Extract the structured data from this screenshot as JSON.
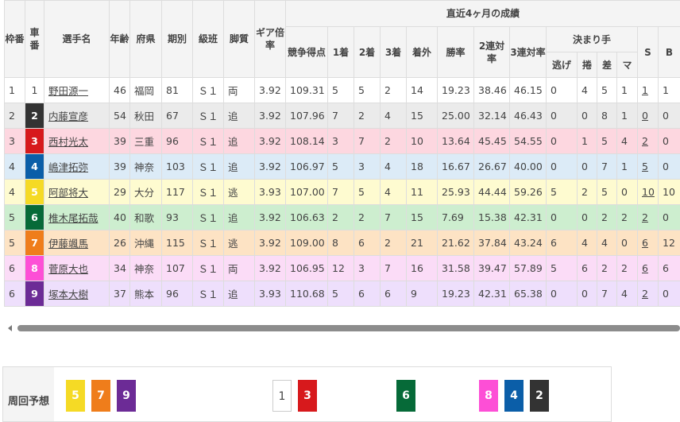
{
  "header": {
    "waku": "枠番",
    "sha": "車番",
    "name": "選手名",
    "age": "年齢",
    "pref": "府県",
    "term": "期別",
    "class": "級班",
    "style": "脚質",
    "gear": "ギア倍率",
    "recent": "直近4ヶ月の成績",
    "score": "競争得点",
    "first": "1着",
    "second": "2着",
    "third": "3着",
    "out": "着外",
    "win": "勝率",
    "ren2": "2連対率",
    "ren3": "3連対率",
    "kimarite": "決まり手",
    "nige": "逃げ",
    "makuri": "捲",
    "sashi": "差",
    "mark": "マ",
    "s": "S",
    "b": "B"
  },
  "car_colors": {
    "1": "#ffffff",
    "2": "#333333",
    "3": "#d7191c",
    "4": "#0b5ea8",
    "5": "#f5da25",
    "6": "#066a38",
    "7": "#ef7d1b",
    "8": "#fd4fd6",
    "9": "#6c2b96"
  },
  "row_colors": {
    "1": "#ffffff",
    "2": "#ebebeb",
    "3": "#fdd7e0",
    "4": "#dcebf7",
    "5": "#fefbd0",
    "6": "#cdeecf",
    "7": "#fde3c4",
    "8": "#fbdcf7",
    "9": "#eedffc"
  },
  "rows": [
    [
      "1",
      "1",
      "野田源一",
      "46",
      "福岡",
      "81",
      "Ｓ１",
      "両",
      "3.92",
      "109.31",
      "5",
      "5",
      "2",
      "14",
      "19.23",
      "38.46",
      "46.15",
      "0",
      "4",
      "5",
      "1",
      "1",
      "1"
    ],
    [
      "2",
      "2",
      "内藤宣彦",
      "54",
      "秋田",
      "67",
      "Ｓ１",
      "追",
      "3.92",
      "107.96",
      "7",
      "2",
      "4",
      "15",
      "25.00",
      "32.14",
      "46.43",
      "0",
      "0",
      "8",
      "1",
      "0",
      "0"
    ],
    [
      "3",
      "3",
      "西村光太",
      "39",
      "三重",
      "96",
      "Ｓ１",
      "追",
      "3.92",
      "108.14",
      "3",
      "7",
      "2",
      "10",
      "13.64",
      "45.45",
      "54.55",
      "0",
      "1",
      "5",
      "4",
      "2",
      "0"
    ],
    [
      "4",
      "4",
      "嶋津拓弥",
      "39",
      "神奈",
      "103",
      "Ｓ１",
      "追",
      "3.92",
      "106.97",
      "5",
      "3",
      "4",
      "18",
      "16.67",
      "26.67",
      "40.00",
      "0",
      "0",
      "7",
      "1",
      "5",
      "0"
    ],
    [
      "4",
      "5",
      "阿部将大",
      "29",
      "大分",
      "117",
      "Ｓ１",
      "逃",
      "3.93",
      "107.00",
      "7",
      "5",
      "4",
      "11",
      "25.93",
      "44.44",
      "59.26",
      "5",
      "2",
      "5",
      "0",
      "10",
      "10"
    ],
    [
      "5",
      "6",
      "椎木尾拓哉",
      "40",
      "和歌",
      "93",
      "Ｓ１",
      "追",
      "3.92",
      "106.63",
      "2",
      "2",
      "7",
      "15",
      "7.69",
      "15.38",
      "42.31",
      "0",
      "0",
      "2",
      "2",
      "2",
      "0"
    ],
    [
      "5",
      "7",
      "伊藤颯馬",
      "26",
      "沖縄",
      "115",
      "Ｓ１",
      "逃",
      "3.92",
      "109.00",
      "8",
      "6",
      "2",
      "21",
      "21.62",
      "37.84",
      "43.24",
      "6",
      "4",
      "4",
      "0",
      "6",
      "12"
    ],
    [
      "6",
      "8",
      "菅原大也",
      "34",
      "神奈",
      "107",
      "Ｓ１",
      "両",
      "3.92",
      "106.95",
      "12",
      "3",
      "7",
      "16",
      "31.58",
      "39.47",
      "57.89",
      "5",
      "6",
      "2",
      "2",
      "6",
      "6"
    ],
    [
      "6",
      "9",
      "塚本大樹",
      "37",
      "熊本",
      "96",
      "Ｓ１",
      "追",
      "3.93",
      "110.68",
      "5",
      "6",
      "6",
      "9",
      "19.23",
      "42.31",
      "65.38",
      "0",
      "0",
      "7",
      "4",
      "2",
      "0"
    ]
  ],
  "prediction": {
    "label": "周回予想",
    "groups": [
      [
        "5",
        "7",
        "9"
      ],
      [
        "1",
        "3"
      ],
      [
        "6"
      ],
      [
        "8",
        "4",
        "2"
      ]
    ]
  }
}
